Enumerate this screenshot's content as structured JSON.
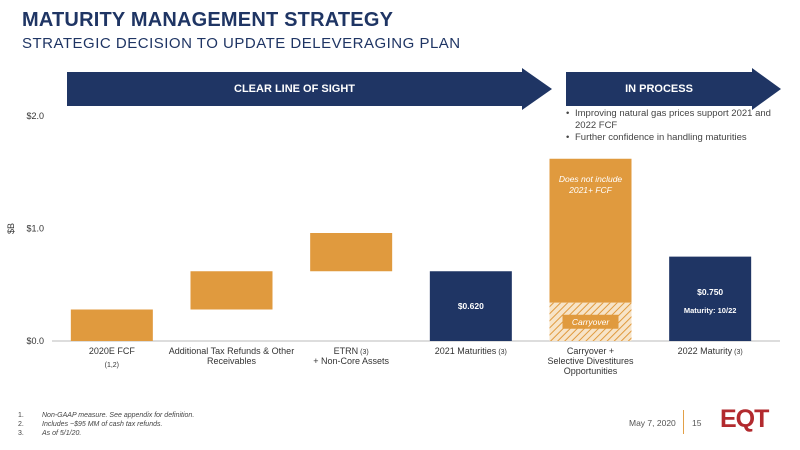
{
  "header": {
    "title": "MATURITY MANAGEMENT STRATEGY",
    "subtitle": "STRATEGIC DECISION TO UPDATE DELEVERAGING PLAN"
  },
  "banners": {
    "left": "CLEAR LINE OF SIGHT",
    "right": "IN PROCESS"
  },
  "bullets": [
    "Improving natural gas prices support 2021 and 2022 FCF",
    "Further confidence in handling maturities"
  ],
  "chart_data": {
    "type": "bar",
    "subtype": "waterfall",
    "ylabel": "$B",
    "ylim": [
      0,
      2.0
    ],
    "yticks": [
      "$0.0",
      "$1.0",
      "$2.0"
    ],
    "categories": [
      {
        "label": "2020E FCF",
        "note": "(1,2)"
      },
      {
        "label": "Additional Tax Refunds & Other Receivables",
        "note": ""
      },
      {
        "label": "ETRN + Non-Core Assets",
        "note": "(3)"
      },
      {
        "label": "2021 Maturities",
        "note": "(3)"
      },
      {
        "label": "Carryover + Selective Divestitures Opportunities",
        "note": ""
      },
      {
        "label": "2022 Maturity",
        "note": "(3)"
      }
    ],
    "bars": [
      {
        "bottom": 0.0,
        "top": 0.28,
        "kind": "increase",
        "label": ""
      },
      {
        "bottom": 0.28,
        "top": 0.62,
        "kind": "increase",
        "label": ""
      },
      {
        "bottom": 0.62,
        "top": 0.96,
        "kind": "increase",
        "label": ""
      },
      {
        "bottom": 0.0,
        "top": 0.62,
        "kind": "maturity",
        "label": "$0.620"
      },
      {
        "bottom": 0.0,
        "top": 1.62,
        "kind": "increase",
        "label": "",
        "carryover_top": 0.34
      },
      {
        "bottom": 0.0,
        "top": 0.75,
        "kind": "maturity",
        "label": "$0.750",
        "sublabel": "Maturity: 10/22"
      }
    ],
    "annotations": {
      "fcf_note": "Does not include 2021+ FCF",
      "carryover": "Carryover"
    },
    "colors": {
      "increase": "#e09a3e",
      "maturity": "#1f3564",
      "banner": "#1f3564"
    }
  },
  "footnotes": [
    {
      "num": "1.",
      "text": "Non-GAAP measure. See appendix for definition."
    },
    {
      "num": "2.",
      "text": "Includes ~$95 MM of cash tax refunds."
    },
    {
      "num": "3.",
      "text": "As of 5/1/20."
    }
  ],
  "footer": {
    "date": "May 7, 2020",
    "page": "15",
    "logo": "EQT"
  }
}
